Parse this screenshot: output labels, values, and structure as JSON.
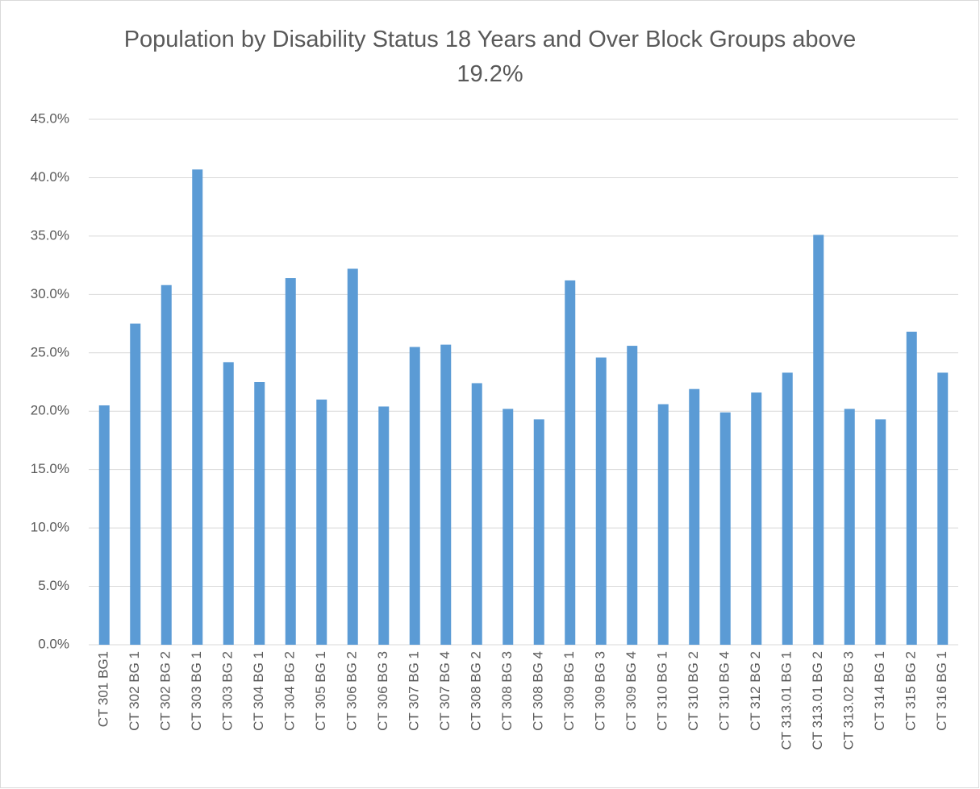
{
  "chart_data": {
    "type": "bar",
    "title": "Population by Disability Status 18 Years and Over Block Groups above 19.2%",
    "categories": [
      "CT 301 BG1",
      "CT 302 BG 1",
      "CT 302 BG 2",
      "CT 303 BG 1",
      "CT 303 BG 2",
      "CT 304 BG 1",
      "CT 304 BG 2",
      "CT 305 BG 1",
      "CT 306 BG 2",
      "CT 306 BG 3",
      "CT 307 BG 1",
      "CT 307 BG 4",
      "CT 308 BG 2",
      "CT 308 BG 3",
      "CT 308 BG 4",
      "CT 309 BG 1",
      "CT 309 BG 3",
      "CT 309 BG 4",
      "CT 310 BG 1",
      "CT 310 BG 2",
      "CT 310 BG 4",
      "CT 312 BG 2",
      "CT 313.01 BG 1",
      "CT 313.01 BG 2",
      "CT 313.02 BG 3",
      "CT 314 BG 1",
      "CT 315 BG 2",
      "CT 316 BG 1"
    ],
    "values": [
      20.5,
      27.5,
      30.8,
      40.7,
      24.2,
      22.5,
      31.4,
      21.0,
      32.2,
      20.4,
      25.5,
      25.7,
      22.4,
      20.2,
      19.3,
      31.2,
      24.6,
      25.6,
      20.6,
      21.9,
      19.9,
      21.6,
      23.3,
      35.1,
      20.2,
      19.3,
      26.8,
      23.3
    ],
    "color": "#5b9bd5",
    "ylim": [
      0,
      45
    ],
    "yticks": [
      {
        "value": 0,
        "label": "0.0%"
      },
      {
        "value": 5,
        "label": "5.0%"
      },
      {
        "value": 10,
        "label": "10.0%"
      },
      {
        "value": 15,
        "label": "15.0%"
      },
      {
        "value": 20,
        "label": "20.0%"
      },
      {
        "value": 25,
        "label": "25.0%"
      },
      {
        "value": 30,
        "label": "30.0%"
      },
      {
        "value": 35,
        "label": "35.0%"
      },
      {
        "value": 40,
        "label": "40.0%"
      },
      {
        "value": 45,
        "label": "45.0%"
      }
    ],
    "grid": true
  }
}
